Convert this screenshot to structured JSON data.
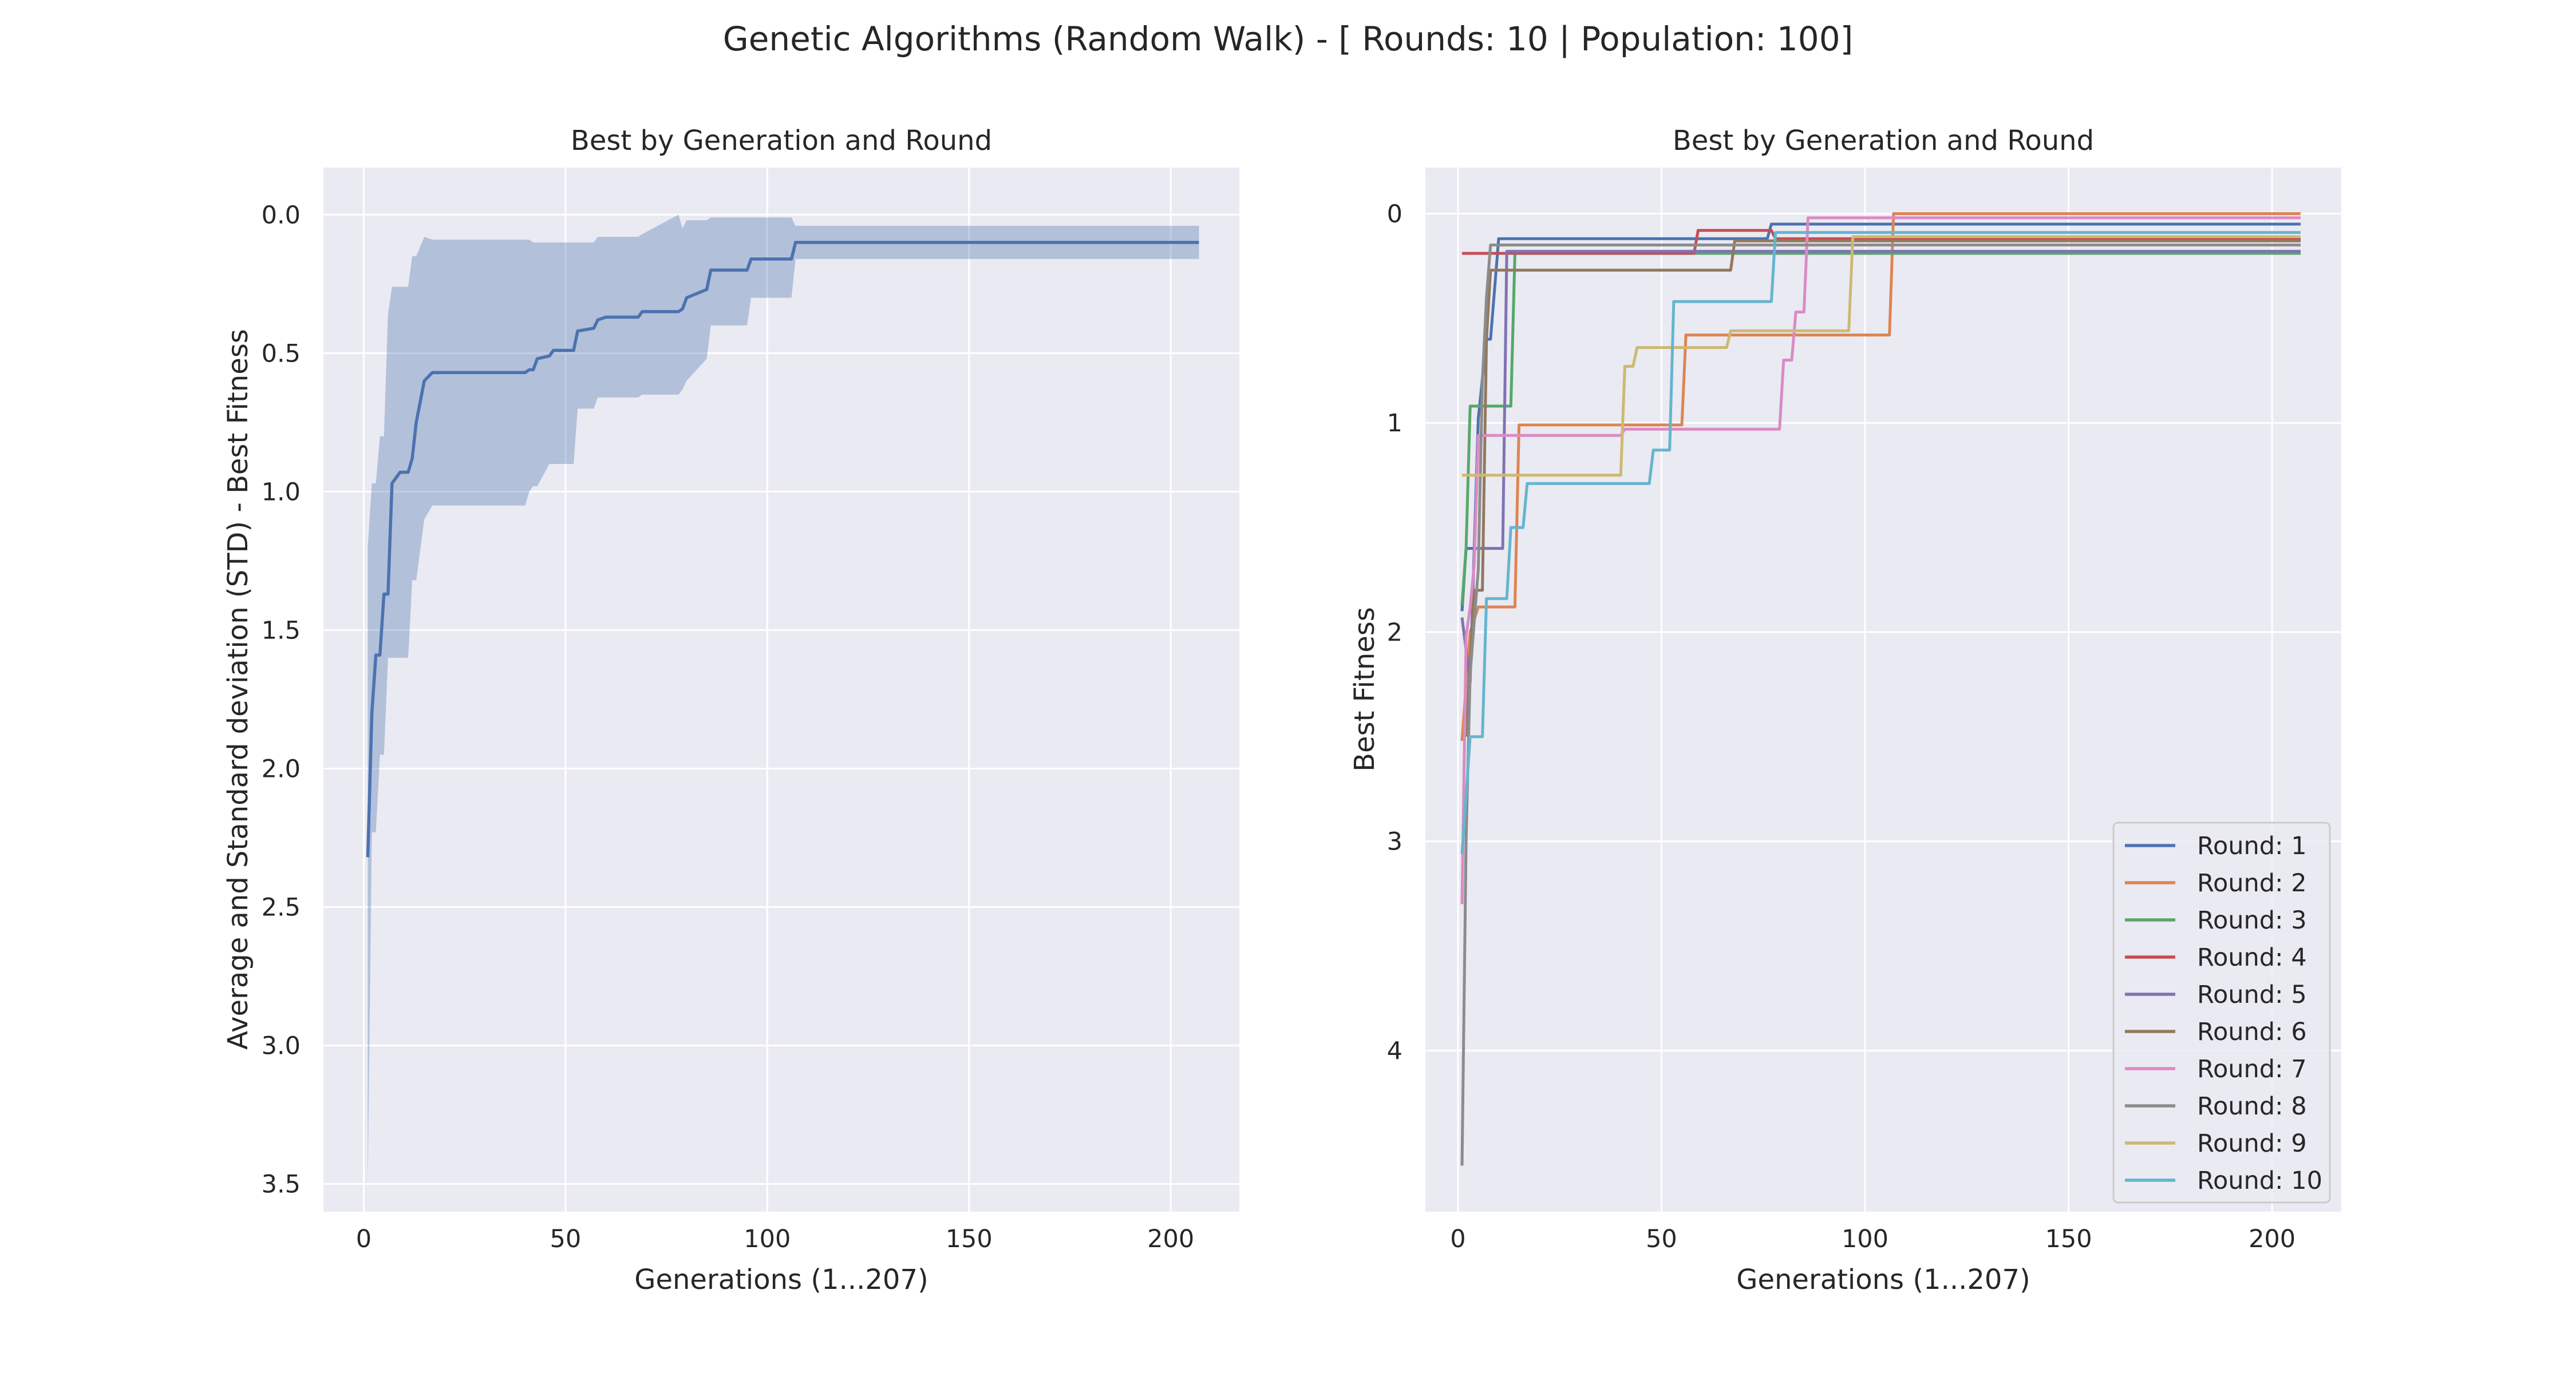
{
  "figure": {
    "suptitle": "Genetic Algorithms (Random Walk) - [ Rounds: 10 | Population: 100]"
  },
  "left_panel": {
    "title": "Best by Generation and Round",
    "xlabel": "Generations (1...207)",
    "ylabel": "Average and Standard deviation (STD) - Best Fitness"
  },
  "right_panel": {
    "title": "Best by Generation and Round",
    "xlabel": "Generations (1...207)",
    "ylabel": "Best Fitness"
  },
  "chart_data": [
    {
      "type": "line",
      "title": "Best by Generation and Round",
      "xlabel": "Generations (1...207)",
      "ylabel": "Average and Standard deviation (STD) - Best Fitness",
      "xlim": [
        -10,
        217
      ],
      "ylim": [
        3.6,
        -0.17
      ],
      "y_inverted": true,
      "grid": true,
      "background": "#eaeaf2",
      "xticks": [
        0,
        50,
        100,
        150,
        200
      ],
      "yticks": [
        0.0,
        0.5,
        1.0,
        1.5,
        2.0,
        2.5,
        3.0,
        3.5
      ],
      "ytick_labels": [
        "0.0",
        "0.5",
        "1.0",
        "1.5",
        "2.0",
        "2.5",
        "3.0",
        "3.5"
      ],
      "series": [
        {
          "color": "#4c72b0",
          "band_color": "#4c72b0",
          "band_alpha": 0.35,
          "points": [
            {
              "x": 1,
              "mean": 2.32,
              "lo": 1.2,
              "hi": 3.5
            },
            {
              "x": 2,
              "mean": 1.8,
              "lo": 0.97,
              "hi": 2.23
            },
            {
              "x": 3,
              "mean": 1.59,
              "lo": 0.97,
              "hi": 2.23
            },
            {
              "x": 4,
              "mean": 1.59,
              "lo": 0.8,
              "hi": 1.95
            },
            {
              "x": 5,
              "mean": 1.37,
              "lo": 0.8,
              "hi": 1.95
            },
            {
              "x": 6,
              "mean": 1.37,
              "lo": 0.36,
              "hi": 1.6
            },
            {
              "x": 7,
              "mean": 0.97,
              "lo": 0.26,
              "hi": 1.6
            },
            {
              "x": 9,
              "mean": 0.93,
              "lo": 0.26,
              "hi": 1.6
            },
            {
              "x": 11,
              "mean": 0.93,
              "lo": 0.26,
              "hi": 1.6
            },
            {
              "x": 12,
              "mean": 0.88,
              "lo": 0.15,
              "hi": 1.32
            },
            {
              "x": 13,
              "mean": 0.75,
              "lo": 0.15,
              "hi": 1.32
            },
            {
              "x": 15,
              "mean": 0.6,
              "lo": 0.08,
              "hi": 1.1
            },
            {
              "x": 17,
              "mean": 0.57,
              "lo": 0.09,
              "hi": 1.05
            },
            {
              "x": 30,
              "mean": 0.57,
              "lo": 0.09,
              "hi": 1.05
            },
            {
              "x": 40,
              "mean": 0.57,
              "lo": 0.09,
              "hi": 1.05
            },
            {
              "x": 41,
              "mean": 0.56,
              "lo": 0.09,
              "hi": 1.0
            },
            {
              "x": 42,
              "mean": 0.56,
              "lo": 0.1,
              "hi": 0.98
            },
            {
              "x": 43,
              "mean": 0.52,
              "lo": 0.1,
              "hi": 0.98
            },
            {
              "x": 46,
              "mean": 0.51,
              "lo": 0.1,
              "hi": 0.9
            },
            {
              "x": 47,
              "mean": 0.49,
              "lo": 0.1,
              "hi": 0.9
            },
            {
              "x": 52,
              "mean": 0.49,
              "lo": 0.1,
              "hi": 0.9
            },
            {
              "x": 53,
              "mean": 0.42,
              "lo": 0.1,
              "hi": 0.7
            },
            {
              "x": 57,
              "mean": 0.41,
              "lo": 0.1,
              "hi": 0.7
            },
            {
              "x": 58,
              "mean": 0.38,
              "lo": 0.08,
              "hi": 0.66
            },
            {
              "x": 60,
              "mean": 0.37,
              "lo": 0.08,
              "hi": 0.66
            },
            {
              "x": 68,
              "mean": 0.37,
              "lo": 0.08,
              "hi": 0.66
            },
            {
              "x": 69,
              "mean": 0.35,
              "lo": 0.07,
              "hi": 0.65
            },
            {
              "x": 78,
              "mean": 0.35,
              "lo": 0.0,
              "hi": 0.65
            },
            {
              "x": 79,
              "mean": 0.34,
              "lo": 0.05,
              "hi": 0.63
            },
            {
              "x": 80,
              "mean": 0.3,
              "lo": 0.02,
              "hi": 0.6
            },
            {
              "x": 85,
              "mean": 0.27,
              "lo": 0.02,
              "hi": 0.52
            },
            {
              "x": 86,
              "mean": 0.2,
              "lo": 0.01,
              "hi": 0.4
            },
            {
              "x": 95,
              "mean": 0.2,
              "lo": 0.01,
              "hi": 0.4
            },
            {
              "x": 96,
              "mean": 0.16,
              "lo": 0.01,
              "hi": 0.3
            },
            {
              "x": 106,
              "mean": 0.16,
              "lo": 0.01,
              "hi": 0.3
            },
            {
              "x": 107,
              "mean": 0.1,
              "lo": 0.04,
              "hi": 0.16
            },
            {
              "x": 207,
              "mean": 0.1,
              "lo": 0.04,
              "hi": 0.16
            }
          ]
        }
      ]
    },
    {
      "type": "line",
      "title": "Best by Generation and Round",
      "xlabel": "Generations (1...207)",
      "ylabel": "Best Fitness",
      "xlim": [
        -8,
        217
      ],
      "ylim": [
        4.77,
        -0.22
      ],
      "y_inverted": true,
      "grid": true,
      "background": "#eaeaf2",
      "legend_position": "lower-right",
      "xticks": [
        0,
        50,
        100,
        150,
        200
      ],
      "yticks": [
        0,
        1,
        2,
        3,
        4
      ],
      "ytick_labels": [
        "0",
        "1",
        "2",
        "3",
        "4"
      ],
      "series": [
        {
          "name": "Round: 1",
          "color": "#4c72b0",
          "x": [
            1,
            2,
            4,
            5,
            7,
            8,
            10,
            76,
            77,
            207
          ],
          "y": [
            1.9,
            1.6,
            1.6,
            0.98,
            0.6,
            0.6,
            0.12,
            0.12,
            0.05,
            0.05
          ]
        },
        {
          "name": "Round: 2",
          "color": "#dd8452",
          "x": [
            1,
            3,
            5,
            14,
            15,
            55,
            56,
            106,
            107,
            207
          ],
          "y": [
            2.52,
            2.0,
            1.88,
            1.88,
            1.01,
            1.01,
            0.58,
            0.58,
            0.0,
            0.0
          ]
        },
        {
          "name": "Round: 3",
          "color": "#55a868",
          "x": [
            1,
            2,
            3,
            13,
            14,
            207
          ],
          "y": [
            1.87,
            1.6,
            0.92,
            0.92,
            0.19,
            0.19
          ]
        },
        {
          "name": "Round: 4",
          "color": "#c44e52",
          "x": [
            1,
            58,
            59,
            77,
            78,
            207
          ],
          "y": [
            0.19,
            0.19,
            0.08,
            0.08,
            0.12,
            0.12
          ]
        },
        {
          "name": "Round: 5",
          "color": "#8172b3",
          "x": [
            1,
            3,
            4,
            5,
            11,
            12,
            207
          ],
          "y": [
            1.93,
            2.24,
            1.6,
            1.6,
            1.6,
            0.18,
            0.18
          ]
        },
        {
          "name": "Round: 6",
          "color": "#937860",
          "x": [
            2,
            4,
            6,
            7,
            8,
            67,
            68,
            207
          ],
          "y": [
            2.5,
            1.8,
            1.8,
            0.6,
            0.27,
            0.27,
            0.13,
            0.13
          ]
        },
        {
          "name": "Round: 7",
          "color": "#da8bc3",
          "x": [
            1,
            2,
            3,
            4,
            5,
            40,
            41,
            79,
            80,
            82,
            83,
            85,
            86,
            207
          ],
          "y": [
            3.3,
            2.02,
            1.88,
            1.68,
            1.06,
            1.06,
            1.03,
            1.03,
            0.7,
            0.7,
            0.47,
            0.47,
            0.02,
            0.02
          ]
        },
        {
          "name": "Round: 8",
          "color": "#8c8c8c",
          "x": [
            1,
            2,
            3,
            5,
            6,
            7,
            8,
            207
          ],
          "y": [
            4.55,
            3.0,
            2.2,
            1.7,
            0.8,
            0.4,
            0.15,
            0.15
          ]
        },
        {
          "name": "Round: 9",
          "color": "#ccb974",
          "x": [
            1,
            3,
            40,
            41,
            43,
            44,
            66,
            67,
            96,
            97,
            207
          ],
          "y": [
            1.25,
            1.25,
            1.25,
            0.73,
            0.73,
            0.64,
            0.64,
            0.56,
            0.56,
            0.11,
            0.11
          ]
        },
        {
          "name": "Round: 10",
          "color": "#64b5cd",
          "x": [
            1,
            3,
            6,
            7,
            12,
            13,
            16,
            17,
            47,
            48,
            52,
            53,
            77,
            78,
            207
          ],
          "y": [
            3.06,
            2.5,
            2.5,
            1.84,
            1.84,
            1.5,
            1.5,
            1.29,
            1.29,
            1.13,
            1.13,
            0.42,
            0.42,
            0.09,
            0.09
          ]
        }
      ]
    }
  ]
}
